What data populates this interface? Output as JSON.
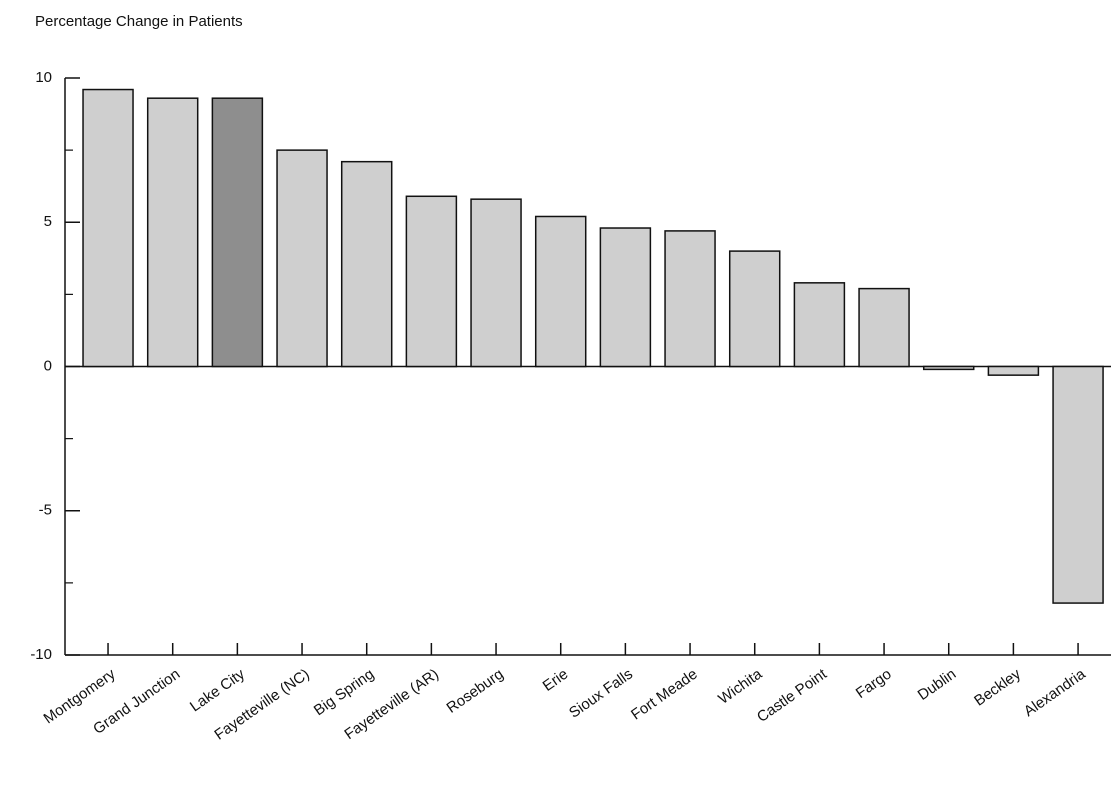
{
  "chart_data": {
    "type": "bar",
    "title": "Percentage Change in Patients",
    "categories": [
      "Montgomery",
      "Grand Junction",
      "Lake City",
      "Fayetteville (NC)",
      "Big Spring",
      "Fayetteville (AR)",
      "Roseburg",
      "Erie",
      "Sioux Falls",
      "Fort Meade",
      "Wichita",
      "Castle Point",
      "Fargo",
      "Dublin",
      "Beckley",
      "Alexandria"
    ],
    "values": [
      9.6,
      9.3,
      9.3,
      7.5,
      7.1,
      5.9,
      5.8,
      5.2,
      4.8,
      4.7,
      4.0,
      2.9,
      2.7,
      -0.1,
      -0.3,
      -8.2
    ],
    "colors": [
      "#cfcfcf",
      "#cfcfcf",
      "#8e8e8e",
      "#cfcfcf",
      "#cfcfcf",
      "#cfcfcf",
      "#cfcfcf",
      "#cfcfcf",
      "#cfcfcf",
      "#cfcfcf",
      "#cfcfcf",
      "#cfcfcf",
      "#cfcfcf",
      "#cfcfcf",
      "#cfcfcf",
      "#cfcfcf"
    ],
    "ylim": [
      -10,
      10
    ],
    "yticks": [
      -10,
      -5,
      0,
      5,
      10
    ],
    "yminorticks": [
      -7.5,
      -2.5,
      2.5,
      7.5
    ],
    "grid": false
  }
}
